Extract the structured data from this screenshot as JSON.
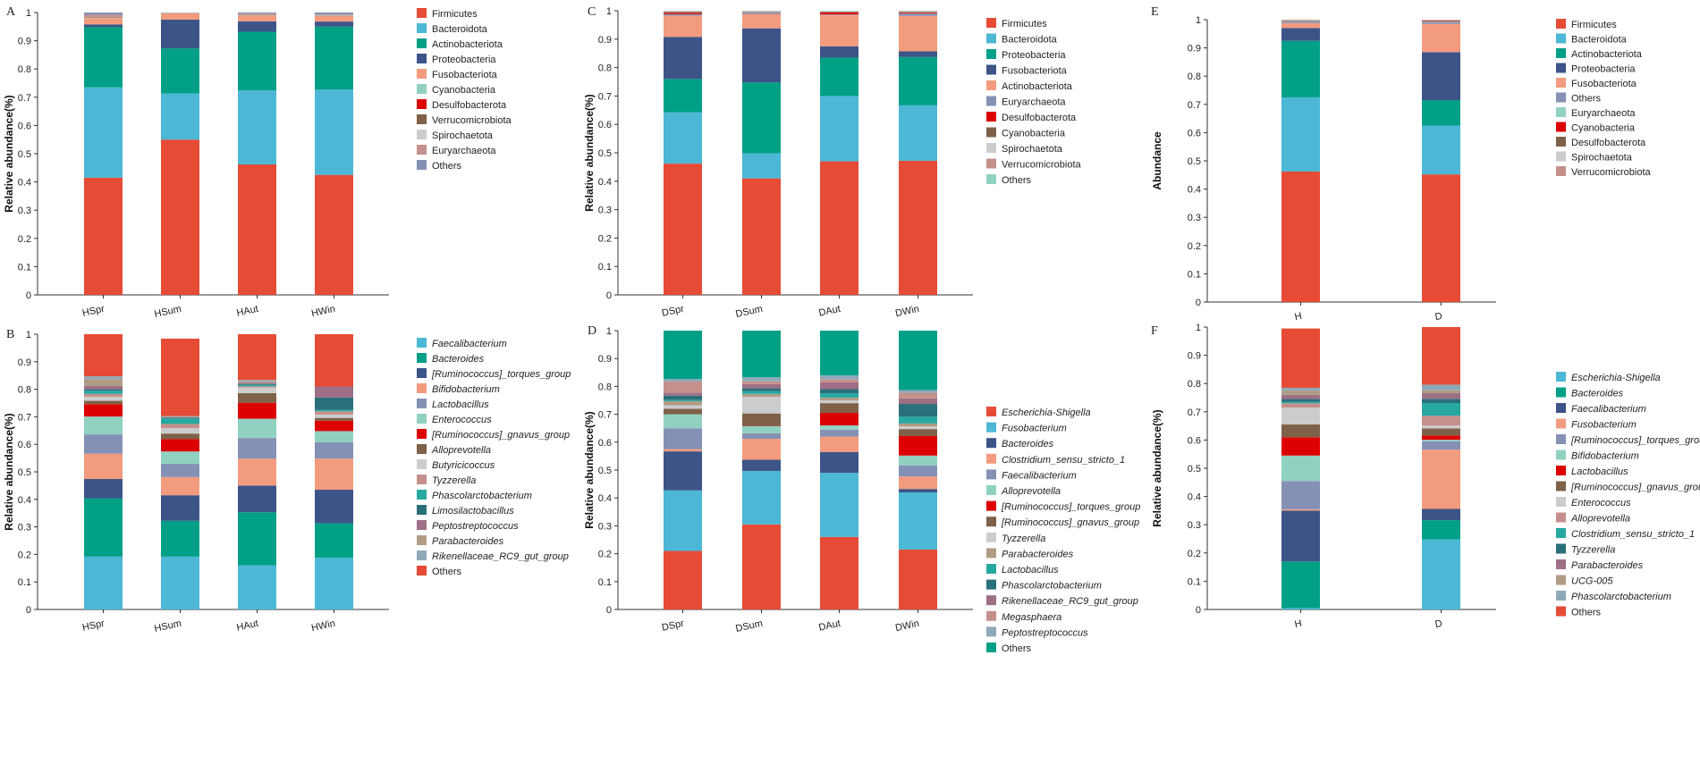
{
  "colors": {
    "red": "#e64b35",
    "blue": "#4db8d6",
    "green": "#00a087",
    "navy": "#3c5488",
    "salmon": "#f39b7f",
    "slate": "#8491b4",
    "mint": "#91d1c2",
    "crimson": "#dc0000",
    "brown": "#7e6148",
    "tan": "#b09c85",
    "lgray": "#cccccc",
    "rose": "#c5908c",
    "dteal": "#2b6f7a",
    "mauve": "#9e6f86",
    "teal2": "#27a8a0",
    "grayblue": "#8fa9b8"
  },
  "chart_data": [
    {
      "id": "A",
      "panel_label": "A",
      "type": "bar",
      "stacked": true,
      "ylabel": "Relative abundance(%)",
      "ylim": [
        0,
        1
      ],
      "yticks": [
        "0",
        "0.1",
        "0.2",
        "0.3",
        "0.4",
        "0.5",
        "0.6",
        "0.7",
        "0.8",
        "0.9",
        "1"
      ],
      "categories": [
        "HSpr",
        "HSum",
        "HAut",
        "HWin"
      ],
      "series": [
        {
          "name": "Firmicutes",
          "color": "red",
          "values": [
            0.415,
            0.55,
            0.462,
            0.425
          ]
        },
        {
          "name": "Bacteroidota",
          "color": "blue",
          "values": [
            0.32,
            0.163,
            0.262,
            0.302
          ]
        },
        {
          "name": "Actinobacteriota",
          "color": "green",
          "values": [
            0.213,
            0.16,
            0.208,
            0.223
          ]
        },
        {
          "name": "Proteobacteria",
          "color": "navy",
          "values": [
            0.01,
            0.102,
            0.037,
            0.018
          ]
        },
        {
          "name": "Fusobacteriota",
          "color": "salmon",
          "values": [
            0.022,
            0.022,
            0.02,
            0.02
          ]
        },
        {
          "name": "Cyanobacteria",
          "color": "mint",
          "values": [
            0.003,
            0.001,
            0.002,
            0.002
          ]
        },
        {
          "name": "Desulfobacterota",
          "color": "crimson",
          "values": [
            0.002,
            0.0,
            0.001,
            0.001
          ]
        },
        {
          "name": "Verrucomicrobiota",
          "color": "brown",
          "values": [
            0.001,
            0.0,
            0.001,
            0.0
          ]
        },
        {
          "name": "Spirochaetota",
          "color": "lgray",
          "values": [
            0.001,
            0.0,
            0.001,
            0.0
          ]
        },
        {
          "name": "Euryarchaeota",
          "color": "rose",
          "values": [
            0.005,
            0.001,
            0.002,
            0.002
          ]
        },
        {
          "name": "Others",
          "color": "slate",
          "values": [
            0.008,
            0.001,
            0.004,
            0.007
          ]
        }
      ]
    },
    {
      "id": "B",
      "panel_label": "B",
      "type": "bar",
      "stacked": true,
      "ylabel": "Relative abundance(%)",
      "ylim": [
        0,
        1
      ],
      "yticks": [
        "0",
        "0.1",
        "0.2",
        "0.3",
        "0.4",
        "0.5",
        "0.6",
        "0.7",
        "0.8",
        "0.9",
        "1"
      ],
      "categories": [
        "HSpr",
        "HSum",
        "HAut",
        "HWin"
      ],
      "series": [
        {
          "name": "Faecalibacterium",
          "italic": true,
          "color": "blue",
          "values": [
            0.192,
            0.192,
            0.16,
            0.188
          ]
        },
        {
          "name": "Bacteroides",
          "italic": true,
          "color": "green",
          "values": [
            0.212,
            0.13,
            0.193,
            0.125
          ]
        },
        {
          "name": "[Ruminococcus]_torques_group",
          "italic": true,
          "color": "navy",
          "values": [
            0.07,
            0.093,
            0.097,
            0.122
          ]
        },
        {
          "name": "Bifidobacterium",
          "italic": true,
          "color": "salmon",
          "values": [
            0.092,
            0.066,
            0.098,
            0.113
          ]
        },
        {
          "name": "Lactobacillus",
          "italic": true,
          "color": "slate",
          "values": [
            0.07,
            0.048,
            0.075,
            0.06
          ]
        },
        {
          "name": "Enterococcus",
          "italic": true,
          "color": "mint",
          "values": [
            0.065,
            0.045,
            0.07,
            0.04
          ]
        },
        {
          "name": "[Ruminococcus]_gnavus_group",
          "italic": true,
          "color": "crimson",
          "values": [
            0.045,
            0.045,
            0.058,
            0.038
          ]
        },
        {
          "name": "Alloprevotella",
          "italic": true,
          "color": "brown",
          "values": [
            0.012,
            0.02,
            0.035,
            0.01
          ]
        },
        {
          "name": "Butyricicoccus",
          "italic": true,
          "color": "lgray",
          "values": [
            0.015,
            0.02,
            0.02,
            0.012
          ]
        },
        {
          "name": "Tyzzerella",
          "italic": true,
          "color": "rose",
          "values": [
            0.01,
            0.015,
            0.005,
            0.012
          ]
        },
        {
          "name": "Phascolarctobacterium",
          "italic": true,
          "color": "teal2",
          "values": [
            0.012,
            0.02,
            0.005,
            0.005
          ]
        },
        {
          "name": "Limosilactobacillus",
          "italic": true,
          "color": "dteal",
          "values": [
            0.005,
            0.003,
            0.003,
            0.045
          ]
        },
        {
          "name": "Peptostreptococcus",
          "italic": true,
          "color": "mauve",
          "values": [
            0.012,
            0.002,
            0.005,
            0.04
          ]
        },
        {
          "name": "Parabacteroides",
          "italic": true,
          "color": "tan",
          "values": [
            0.025,
            0.002,
            0.005,
            0.0
          ]
        },
        {
          "name": "Rikenellaceae_RC9_gut_group",
          "italic": true,
          "color": "grayblue",
          "values": [
            0.01,
            0.002,
            0.005,
            0.0
          ]
        },
        {
          "name": "Others",
          "italic": false,
          "color": "red",
          "values": [
            0.153,
            0.281,
            0.166,
            0.19
          ]
        }
      ]
    },
    {
      "id": "C",
      "panel_label": "C",
      "type": "bar",
      "stacked": true,
      "ylabel": "Relative abundance(%)",
      "ylim": [
        0,
        1
      ],
      "yticks": [
        "0",
        "0.1",
        "0.2",
        "0.3",
        "0.4",
        "0.5",
        "0.6",
        "0.7",
        "0.8",
        "0.9",
        "1"
      ],
      "categories": [
        "DSpr",
        "DSum",
        "DAut",
        "DWin"
      ],
      "series": [
        {
          "name": "Firmicutes",
          "color": "red",
          "values": [
            0.462,
            0.41,
            0.47,
            0.472
          ]
        },
        {
          "name": "Bacteroidota",
          "color": "blue",
          "values": [
            0.18,
            0.088,
            0.23,
            0.195
          ]
        },
        {
          "name": "Proteobacteria",
          "color": "green",
          "values": [
            0.118,
            0.25,
            0.135,
            0.17
          ]
        },
        {
          "name": "Fusobacteriota",
          "color": "navy",
          "values": [
            0.148,
            0.19,
            0.04,
            0.02
          ]
        },
        {
          "name": "Actinobacteriota",
          "color": "salmon",
          "values": [
            0.075,
            0.05,
            0.11,
            0.125
          ]
        },
        {
          "name": "Euryarchaeota",
          "color": "slate",
          "values": [
            0.005,
            0.005,
            0.002,
            0.008
          ]
        },
        {
          "name": "Desulfobacterota",
          "color": "crimson",
          "values": [
            0.005,
            0.001,
            0.007,
            0.003
          ]
        },
        {
          "name": "Cyanobacteria",
          "color": "brown",
          "values": [
            0.003,
            0.001,
            0.002,
            0.002
          ]
        },
        {
          "name": "Spirochaetota",
          "color": "lgray",
          "values": [
            0.002,
            0.002,
            0.002,
            0.002
          ]
        },
        {
          "name": "Verrucomicrobiota",
          "color": "rose",
          "values": [
            0.001,
            0.001,
            0.001,
            0.002
          ]
        },
        {
          "name": "Others",
          "color": "mint",
          "values": [
            0.001,
            0.002,
            0.001,
            0.001
          ]
        }
      ]
    },
    {
      "id": "D",
      "panel_label": "D",
      "type": "bar",
      "stacked": true,
      "ylabel": "Relative abundance(%)",
      "ylim": [
        0,
        1
      ],
      "yticks": [
        "0",
        "0.1",
        "0.2",
        "0.3",
        "0.4",
        "0.5",
        "0.6",
        "0.7",
        "0.8",
        "0.9",
        "1"
      ],
      "categories": [
        "DSpr",
        "DSum",
        "DAut",
        "DWin"
      ],
      "series": [
        {
          "name": "Escherichia-Shigella",
          "italic": true,
          "color": "red",
          "values": [
            0.21,
            0.305,
            0.26,
            0.215
          ]
        },
        {
          "name": "Fusobacterium",
          "italic": true,
          "color": "blue",
          "values": [
            0.217,
            0.192,
            0.23,
            0.205
          ]
        },
        {
          "name": "Bacteroides",
          "italic": true,
          "color": "navy",
          "values": [
            0.14,
            0.04,
            0.075,
            0.012
          ]
        },
        {
          "name": "Clostridium_sensu_stricto_1",
          "italic": true,
          "color": "salmon",
          "values": [
            0.008,
            0.075,
            0.055,
            0.045
          ]
        },
        {
          "name": "Faecalibacterium",
          "italic": true,
          "color": "slate",
          "values": [
            0.075,
            0.02,
            0.025,
            0.04
          ]
        },
        {
          "name": "Alloprevotella",
          "italic": true,
          "color": "mint",
          "values": [
            0.05,
            0.025,
            0.015,
            0.035
          ]
        },
        {
          "name": "[Ruminococcus]_torques_group",
          "italic": true,
          "color": "crimson",
          "values": [
            0.0,
            0.001,
            0.045,
            0.07
          ]
        },
        {
          "name": "[Ruminococcus]_gnavus_group",
          "italic": true,
          "color": "brown",
          "values": [
            0.02,
            0.045,
            0.035,
            0.025
          ]
        },
        {
          "name": "Tyzzerella",
          "italic": true,
          "color": "lgray",
          "values": [
            0.012,
            0.06,
            0.01,
            0.01
          ]
        },
        {
          "name": "Parabacteroides",
          "italic": true,
          "color": "tan",
          "values": [
            0.015,
            0.01,
            0.01,
            0.01
          ]
        },
        {
          "name": "Lactobacillus",
          "italic": true,
          "color": "teal2",
          "values": [
            0.005,
            0.01,
            0.015,
            0.025
          ]
        },
        {
          "name": "Phascolarctobacterium",
          "italic": true,
          "color": "dteal",
          "values": [
            0.015,
            0.01,
            0.015,
            0.045
          ]
        },
        {
          "name": "Rikenellaceae_RC9_gut_group",
          "italic": true,
          "color": "mauve",
          "values": [
            0.01,
            0.015,
            0.025,
            0.02
          ]
        },
        {
          "name": "Megasphaera",
          "italic": true,
          "color": "rose",
          "values": [
            0.04,
            0.01,
            0.01,
            0.02
          ]
        },
        {
          "name": "Peptostreptococcus",
          "italic": true,
          "color": "grayblue",
          "values": [
            0.01,
            0.015,
            0.015,
            0.01
          ]
        },
        {
          "name": "Others",
          "italic": false,
          "color": "green",
          "values": [
            0.173,
            0.167,
            0.16,
            0.213
          ]
        }
      ]
    },
    {
      "id": "E",
      "panel_label": "E",
      "type": "bar",
      "stacked": true,
      "ylabel": "Abundance",
      "ylim": [
        0,
        1
      ],
      "yticks": [
        "0",
        "0.1",
        "0.2",
        "0.3",
        "0.4",
        "0.5",
        "0.6",
        "0.7",
        "0.8",
        "0.9",
        "1"
      ],
      "categories": [
        "H",
        "D"
      ],
      "series": [
        {
          "name": "Firmicutes",
          "color": "red",
          "values": [
            0.462,
            0.452
          ]
        },
        {
          "name": "Bacteroidota",
          "color": "blue",
          "values": [
            0.263,
            0.173
          ]
        },
        {
          "name": "Actinobacteriota",
          "color": "green",
          "values": [
            0.2,
            0.09
          ]
        },
        {
          "name": "Proteobacteria",
          "color": "navy",
          "values": [
            0.045,
            0.17
          ]
        },
        {
          "name": "Fusobacteriota",
          "color": "salmon",
          "values": [
            0.018,
            0.1
          ]
        },
        {
          "name": "Others",
          "color": "slate",
          "values": [
            0.006,
            0.006
          ]
        },
        {
          "name": "Euryarchaeota",
          "color": "mint",
          "values": [
            0.002,
            0.002
          ]
        },
        {
          "name": "Cyanobacteria",
          "color": "crimson",
          "values": [
            0.001,
            0.002
          ]
        },
        {
          "name": "Desulfobacterota",
          "color": "brown",
          "values": [
            0.001,
            0.002
          ]
        },
        {
          "name": "Spirochaetota",
          "color": "lgray",
          "values": [
            0.001,
            0.002
          ]
        },
        {
          "name": "Verrucomicrobiota",
          "color": "rose",
          "values": [
            0.001,
            0.001
          ]
        }
      ]
    },
    {
      "id": "F",
      "panel_label": "F",
      "type": "bar",
      "stacked": true,
      "ylabel": "Relative abundance(%)",
      "ylim": [
        0,
        1
      ],
      "yticks": [
        "0",
        "0.1",
        "0.2",
        "0.3",
        "0.4",
        "0.5",
        "0.6",
        "0.7",
        "0.8",
        "0.9",
        "1"
      ],
      "categories": [
        "H",
        "D"
      ],
      "series": [
        {
          "name": "Escherichia-Shigella",
          "italic": true,
          "color": "blue",
          "values": [
            0.005,
            0.248
          ]
        },
        {
          "name": "Bacteroides",
          "italic": true,
          "color": "green",
          "values": [
            0.165,
            0.068
          ]
        },
        {
          "name": "Faecalibacterium",
          "italic": true,
          "color": "navy",
          "values": [
            0.18,
            0.04
          ]
        },
        {
          "name": "Fusobacterium",
          "italic": true,
          "color": "salmon",
          "values": [
            0.005,
            0.21
          ]
        },
        {
          "name": "[Ruminococcus]_torques_group",
          "italic": true,
          "color": "slate",
          "values": [
            0.1,
            0.03
          ]
        },
        {
          "name": "Bifidobacterium",
          "italic": true,
          "color": "mint",
          "values": [
            0.09,
            0.005
          ]
        },
        {
          "name": "Lactobacillus",
          "italic": true,
          "color": "crimson",
          "values": [
            0.065,
            0.015
          ]
        },
        {
          "name": "[Ruminococcus]_gnavus_group",
          "italic": true,
          "color": "brown",
          "values": [
            0.045,
            0.025
          ]
        },
        {
          "name": "Enterococcus",
          "italic": true,
          "color": "lgray",
          "values": [
            0.06,
            0.01
          ]
        },
        {
          "name": "Alloprevotella",
          "italic": true,
          "color": "rose",
          "values": [
            0.015,
            0.035
          ]
        },
        {
          "name": "Clostridium_sensu_stricto_1",
          "italic": true,
          "color": "teal2",
          "values": [
            0.005,
            0.045
          ]
        },
        {
          "name": "Tyzzerella",
          "italic": true,
          "color": "dteal",
          "values": [
            0.01,
            0.015
          ]
        },
        {
          "name": "Parabacteroides",
          "italic": true,
          "color": "mauve",
          "values": [
            0.015,
            0.02
          ]
        },
        {
          "name": "UCG-005",
          "italic": true,
          "color": "tan",
          "values": [
            0.015,
            0.01
          ]
        },
        {
          "name": "Phascolarctobacterium",
          "italic": true,
          "color": "grayblue",
          "values": [
            0.01,
            0.02
          ]
        },
        {
          "name": "Others",
          "italic": false,
          "color": "red",
          "values": [
            0.21,
            0.204
          ]
        }
      ]
    }
  ]
}
